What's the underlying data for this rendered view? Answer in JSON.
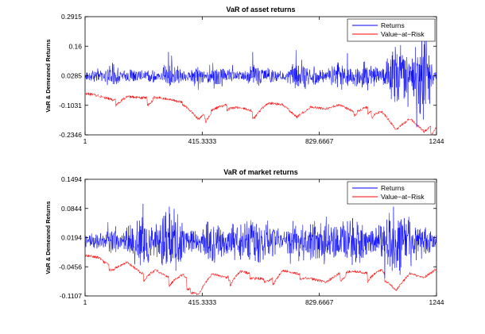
{
  "chart_data": [
    {
      "type": "line",
      "title": "VaR of asset returns",
      "xlabel": "",
      "ylabel": "VaR & Demeaned Returns",
      "xlim": [
        1,
        1244
      ],
      "ylim": [
        -0.2346,
        0.2915
      ],
      "xticks": [
        "1",
        "415.3333",
        "829.6667",
        "1244"
      ],
      "yticks": [
        "0.2915",
        "0.16",
        "0.0285",
        "-0.1031",
        "-0.2346"
      ],
      "legend": {
        "position": "top-right",
        "entries": [
          "Returns",
          "Value−at−Risk"
        ]
      },
      "grid": false,
      "series": [
        {
          "name": "Returns",
          "color": "#0000ff",
          "x": [
            1,
            50,
            100,
            150,
            200,
            250,
            300,
            350,
            400,
            450,
            500,
            550,
            600,
            650,
            700,
            750,
            800,
            850,
            900,
            950,
            1000,
            1050,
            1100,
            1150,
            1200,
            1244
          ],
          "values": [
            0.022,
            0.045,
            -0.015,
            0.055,
            0.028,
            0.015,
            0.07,
            0.04,
            -0.02,
            0.075,
            0.045,
            0.03,
            0.065,
            0.05,
            0.03,
            0.07,
            0.06,
            0.035,
            0.075,
            0.05,
            0.08,
            0.03,
            0.18,
            0.075,
            0.23,
            0.0
          ]
        },
        {
          "name": "Value−at−Risk",
          "color": "#ff0000",
          "x": [
            1,
            50,
            100,
            150,
            200,
            250,
            300,
            350,
            400,
            450,
            500,
            550,
            600,
            650,
            700,
            750,
            800,
            850,
            900,
            950,
            1000,
            1050,
            1100,
            1150,
            1200,
            1244
          ],
          "values": [
            -0.05,
            -0.06,
            -0.08,
            -0.06,
            -0.07,
            -0.065,
            -0.075,
            -0.09,
            -0.16,
            -0.12,
            -0.1,
            -0.11,
            -0.13,
            -0.09,
            -0.1,
            -0.155,
            -0.11,
            -0.12,
            -0.1,
            -0.13,
            -0.11,
            -0.12,
            -0.21,
            -0.16,
            -0.22,
            -0.18
          ]
        }
      ]
    },
    {
      "type": "line",
      "title": "VaR of market returns",
      "xlabel": "",
      "ylabel": "VaR & Demeaned Returns",
      "xlim": [
        1,
        1244
      ],
      "ylim": [
        -0.1107,
        0.1494
      ],
      "xticks": [
        "1",
        "415.3333",
        "829.6667",
        "1244"
      ],
      "yticks": [
        "0.1494",
        "0.0844",
        "0.0194",
        "-0.0456",
        "-0.1107"
      ],
      "legend": {
        "position": "top-right",
        "entries": [
          "Returns",
          "Value−at−Risk"
        ]
      },
      "grid": false,
      "series": [
        {
          "name": "Returns",
          "color": "#0000ff",
          "x": [
            1,
            50,
            100,
            150,
            200,
            250,
            300,
            350,
            400,
            450,
            500,
            550,
            600,
            650,
            700,
            750,
            800,
            850,
            900,
            950,
            1000,
            1050,
            1100,
            1150,
            1200,
            1244
          ],
          "values": [
            0.01,
            0.02,
            -0.005,
            0.03,
            0.06,
            0.03,
            0.08,
            0.04,
            0.02,
            0.05,
            0.03,
            0.04,
            0.05,
            0.04,
            0.02,
            0.035,
            0.04,
            0.05,
            0.03,
            0.065,
            0.035,
            0.04,
            0.09,
            0.05,
            0.035,
            0.01
          ]
        },
        {
          "name": "Value−at−Risk",
          "color": "#ff0000",
          "x": [
            1,
            50,
            100,
            150,
            200,
            250,
            300,
            350,
            400,
            450,
            500,
            550,
            600,
            650,
            700,
            750,
            800,
            850,
            900,
            950,
            1000,
            1050,
            1100,
            1150,
            1200,
            1244
          ],
          "values": [
            -0.02,
            -0.025,
            -0.045,
            -0.035,
            -0.06,
            -0.05,
            -0.07,
            -0.06,
            -0.1,
            -0.06,
            -0.07,
            -0.05,
            -0.065,
            -0.075,
            -0.05,
            -0.06,
            -0.07,
            -0.08,
            -0.06,
            -0.055,
            -0.06,
            -0.05,
            -0.095,
            -0.06,
            -0.07,
            -0.05
          ]
        }
      ]
    }
  ]
}
